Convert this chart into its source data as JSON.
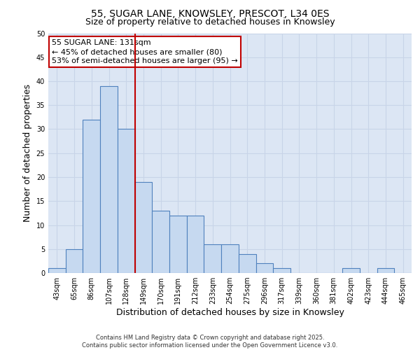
{
  "title_line1": "55, SUGAR LANE, KNOWSLEY, PRESCOT, L34 0ES",
  "title_line2": "Size of property relative to detached houses in Knowsley",
  "xlabel": "Distribution of detached houses by size in Knowsley",
  "ylabel": "Number of detached properties",
  "categories": [
    "43sqm",
    "65sqm",
    "86sqm",
    "107sqm",
    "128sqm",
    "149sqm",
    "170sqm",
    "191sqm",
    "212sqm",
    "233sqm",
    "254sqm",
    "275sqm",
    "296sqm",
    "317sqm",
    "339sqm",
    "360sqm",
    "381sqm",
    "402sqm",
    "423sqm",
    "444sqm",
    "465sqm"
  ],
  "values": [
    1,
    5,
    32,
    39,
    30,
    19,
    13,
    12,
    12,
    6,
    6,
    4,
    2,
    1,
    0,
    0,
    0,
    1,
    0,
    1,
    0
  ],
  "bar_color": "#c6d9f0",
  "bar_edge_color": "#4f81bd",
  "vline_color": "#c00000",
  "vline_pos": 4.5,
  "annotation_line1": "55 SUGAR LANE: 131sqm",
  "annotation_line2": "← 45% of detached houses are smaller (80)",
  "annotation_line3": "53% of semi-detached houses are larger (95) →",
  "annotation_box_color": "#c00000",
  "annotation_box_fill": "#ffffff",
  "ylim": [
    0,
    50
  ],
  "yticks": [
    0,
    5,
    10,
    15,
    20,
    25,
    30,
    35,
    40,
    45,
    50
  ],
  "grid_color": "#c8d4e8",
  "background_color": "#dce6f4",
  "footer_text": "Contains HM Land Registry data © Crown copyright and database right 2025.\nContains public sector information licensed under the Open Government Licence v3.0.",
  "title_fontsize": 10,
  "subtitle_fontsize": 9,
  "axis_label_fontsize": 9,
  "tick_fontsize": 7,
  "annotation_fontsize": 8,
  "footer_fontsize": 6
}
